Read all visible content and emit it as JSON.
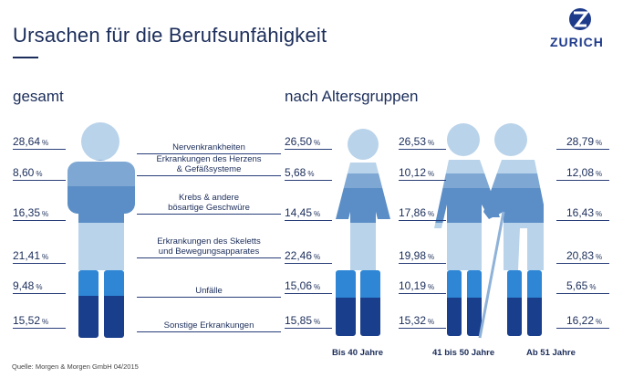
{
  "title": "Ursachen für die Berufsunfähigkeit",
  "brand": "ZURICH",
  "section_total": "gesamt",
  "section_age": "nach Altersgruppen",
  "source": "Quelle: Morgen & Morgen GmbH 04/2015",
  "colors": {
    "nerven": "#b9d3ea",
    "herz": "#7ea7d3",
    "krebs": "#5b8ec6",
    "skelett": "#b9d3ea",
    "unfaelle": "#2e86d4",
    "sonstige": "#193e8c",
    "text": "#1b2d5a"
  },
  "chart_data": [
    {
      "type": "table",
      "group": "gesamt",
      "categories": [
        "Nervenkrankheiten",
        "Erkrankungen des Herzens & Gefäßsysteme",
        "Krebs & andere bösartige Geschwüre",
        "Erkrankungen des Skeletts und Bewegungsapparates",
        "Unfälle",
        "Sonstige Erkrankungen"
      ],
      "labels": [
        "28,64",
        "8,60",
        "16,35",
        "21,41",
        "9,48",
        "15,52"
      ],
      "values": [
        28.64,
        8.6,
        16.35,
        21.41,
        9.48,
        15.52
      ],
      "unit": "%"
    },
    {
      "type": "table",
      "group": "nach Altersgruppen",
      "categories": [
        "Nervenkrankheiten",
        "Erkrankungen des Herzens & Gefäßsysteme",
        "Krebs & andere bösartige Geschwüre",
        "Erkrankungen des Skeletts und Bewegungsapparates",
        "Unfälle",
        "Sonstige Erkrankungen"
      ],
      "series": [
        {
          "name": "Bis 40 Jahre",
          "labels": [
            "26,50",
            "5,68",
            "14,45",
            "22,46",
            "15,06",
            "15,85"
          ],
          "values": [
            26.5,
            5.68,
            14.45,
            22.46,
            15.06,
            15.85
          ]
        },
        {
          "name": "41 bis 50 Jahre",
          "labels": [
            "26,53",
            "10,12",
            "17,86",
            "19,98",
            "10,19",
            "15,32"
          ],
          "values": [
            26.53,
            10.12,
            17.86,
            19.98,
            10.19,
            15.32
          ]
        },
        {
          "name": "Ab 51 Jahre",
          "labels": [
            "28,79",
            "12,08",
            "16,43",
            "20,83",
            "5,65",
            "16,22"
          ],
          "values": [
            28.79,
            12.08,
            16.43,
            20.83,
            5.65,
            16.22
          ]
        }
      ],
      "unit": "%"
    }
  ],
  "category_text": [
    [
      "Nervenkrankheiten"
    ],
    [
      "Erkrankungen des Herzens",
      "& Gefäßsysteme"
    ],
    [
      "Krebs & andere",
      "bösartige Geschwüre"
    ],
    [
      "Erkrankungen des Skeletts",
      "und Bewegungsapparates"
    ],
    [
      "Unfälle"
    ],
    [
      "Sonstige Erkrankungen"
    ]
  ]
}
